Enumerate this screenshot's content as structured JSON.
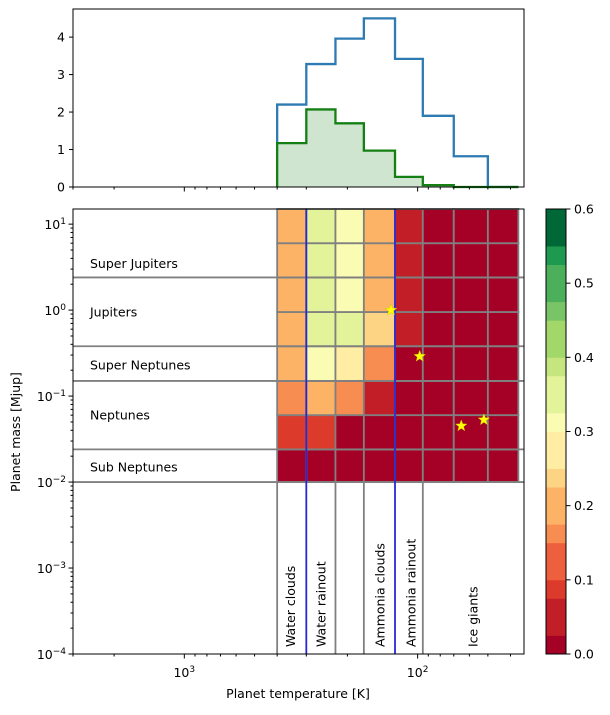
{
  "chart_data": [
    {
      "type": "histogram",
      "x_scale": "log-reversed",
      "xlim": [
        3000,
        35
      ],
      "ylim": [
        0,
        4.75
      ],
      "yticks": [
        0,
        1,
        2,
        3,
        4
      ],
      "bin_edges": [
        400,
        300,
        225,
        170,
        125,
        95,
        70,
        50,
        37
      ],
      "series": [
        {
          "name": "",
          "color": "#2e7bb4",
          "fill": false,
          "values": [
            2.2,
            3.28,
            3.96,
            4.5,
            3.42,
            1.9,
            0.82,
            0
          ]
        },
        {
          "name": "",
          "color": "#148014",
          "fill": true,
          "fill_color": "#cfe5cf",
          "values": [
            1.17,
            2.07,
            1.7,
            0.97,
            0.27,
            0.05,
            0,
            0
          ]
        }
      ]
    },
    {
      "type": "heatmap",
      "x_scale": "log-reversed",
      "y_scale": "log",
      "xlim": [
        3000,
        35
      ],
      "ylim": [
        0.0001,
        15
      ],
      "xlabel": "Planet temperature [K]",
      "ylabel": "Planet mass [Mjup]",
      "xticks": [
        {
          "value": 1000,
          "label": "10",
          "exp": "3"
        },
        {
          "value": 100,
          "label": "10",
          "exp": "2"
        }
      ],
      "yticks": [
        {
          "value": 10,
          "label": "10",
          "exp": "1"
        },
        {
          "value": 1,
          "label": "10",
          "exp": "0"
        },
        {
          "value": 0.1,
          "label": "10",
          "exp": "−1"
        },
        {
          "value": 0.01,
          "label": "10",
          "exp": "−2"
        },
        {
          "value": 0.001,
          "label": "10",
          "exp": "−3"
        },
        {
          "value": 0.0001,
          "label": "10",
          "exp": "−4"
        }
      ],
      "x_bin_edges": [
        400,
        300,
        225,
        170,
        125,
        95,
        70,
        50,
        37
      ],
      "y_bin_edges": [
        0.01,
        0.024,
        0.06,
        0.15,
        0.38,
        0.95,
        2.4,
        6,
        15
      ],
      "cells": [
        [
          0.02,
          0.02,
          0.02,
          0.02,
          0.02,
          0.02,
          0.02,
          0.02
        ],
        [
          0.11,
          0.11,
          0.02,
          0.02,
          0.02,
          0.02,
          0.02,
          0.02
        ],
        [
          0.15,
          0.22,
          0.15,
          0.06,
          0.02,
          0.02,
          0.02,
          0.02
        ],
        [
          0.2,
          0.33,
          0.27,
          0.15,
          0.02,
          0.02,
          0.02,
          0.02
        ],
        [
          0.2,
          0.36,
          0.36,
          0.25,
          0.06,
          0.02,
          0.02,
          0.02
        ],
        [
          0.2,
          0.36,
          0.32,
          0.2,
          0.06,
          0.02,
          0.02,
          0.02
        ],
        [
          0.2,
          0.36,
          0.32,
          0.2,
          0.06,
          0.02,
          0.02,
          0.02
        ],
        [
          0.2,
          0.36,
          0.32,
          0.2,
          0.06,
          0.02,
          0.02,
          0.02
        ]
      ],
      "mass_boundaries": [
        0.01,
        0.024,
        0.15,
        0.38,
        2.4
      ],
      "mass_classes": [
        {
          "label": "Super Jupiters",
          "mass": 3.5
        },
        {
          "label": "Jupiters",
          "mass": 0.95
        },
        {
          "label": "Super Neptunes",
          "mass": 0.23
        },
        {
          "label": "Neptunes",
          "mass": 0.06
        },
        {
          "label": "Sub Neptunes",
          "mass": 0.015
        }
      ],
      "temp_lines_gray": [
        400,
        225,
        170,
        95
      ],
      "temp_lines_blue": [
        300,
        125
      ],
      "temp_regions": [
        {
          "label": "Water clouds",
          "temp": 350
        },
        {
          "label": "Water rainout",
          "temp": 260
        },
        {
          "label": "Ammonia clouds",
          "temp": 145
        },
        {
          "label": "Ammonia rainout",
          "temp": 107
        },
        {
          "label": "Ice giants",
          "temp": 58
        }
      ],
      "stars": [
        {
          "temp": 130,
          "mass": 1.0
        },
        {
          "temp": 98,
          "mass": 0.29
        },
        {
          "temp": 65,
          "mass": 0.045
        },
        {
          "temp": 52,
          "mass": 0.053
        }
      ],
      "star_color": "#ffff00",
      "colorbar": {
        "min": 0.0,
        "max": 0.6,
        "step": 0.025,
        "ticks": [
          "0.0",
          "0.1",
          "0.2",
          "0.3",
          "0.4",
          "0.5",
          "0.6"
        ],
        "colormap": "RdYlGn"
      }
    }
  ]
}
